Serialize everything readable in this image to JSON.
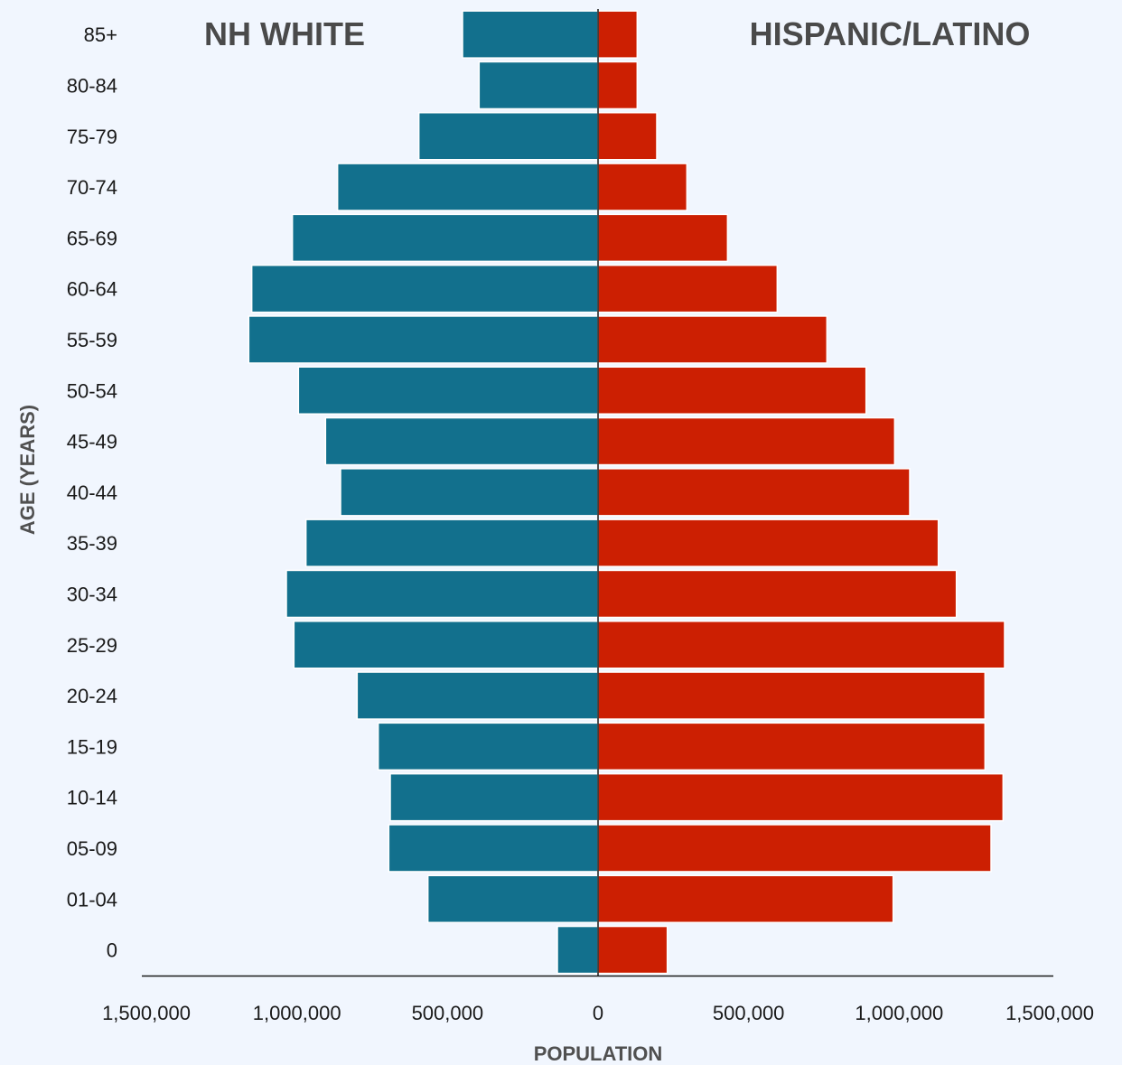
{
  "chart_data": {
    "type": "bar",
    "orientation": "horizontal",
    "layout": "population-pyramid",
    "categories": [
      "85+",
      "80-84",
      "75-79",
      "70-74",
      "65-69",
      "60-64",
      "55-59",
      "50-54",
      "45-49",
      "40-44",
      "35-39",
      "30-34",
      "25-29",
      "20-24",
      "15-19",
      "10-14",
      "05-09",
      "01-04",
      "0"
    ],
    "series": [
      {
        "name": "NH WHITE",
        "side": "left",
        "color": "#12708d",
        "values": [
          450000,
          395000,
          595000,
          865000,
          1015000,
          1150000,
          1160000,
          995000,
          905000,
          855000,
          970000,
          1035000,
          1010000,
          800000,
          730000,
          690000,
          695000,
          565000,
          135000
        ]
      },
      {
        "name": "HISPANIC/LATINO",
        "side": "right",
        "color": "#cc1f02",
        "values": [
          130000,
          130000,
          195000,
          295000,
          430000,
          595000,
          760000,
          890000,
          985000,
          1035000,
          1130000,
          1190000,
          1350000,
          1285000,
          1285000,
          1345000,
          1305000,
          980000,
          230000
        ]
      }
    ],
    "xlabel": "POPULATION",
    "ylabel": "AGE (YEARS)",
    "xlim": [
      -1500000,
      1500000
    ],
    "x_ticks": [
      "1,500,000",
      "1,000,000",
      "500,000",
      "0",
      "500,000",
      "1,000,000",
      "1,500,000"
    ],
    "grid": false,
    "legend": "none"
  }
}
